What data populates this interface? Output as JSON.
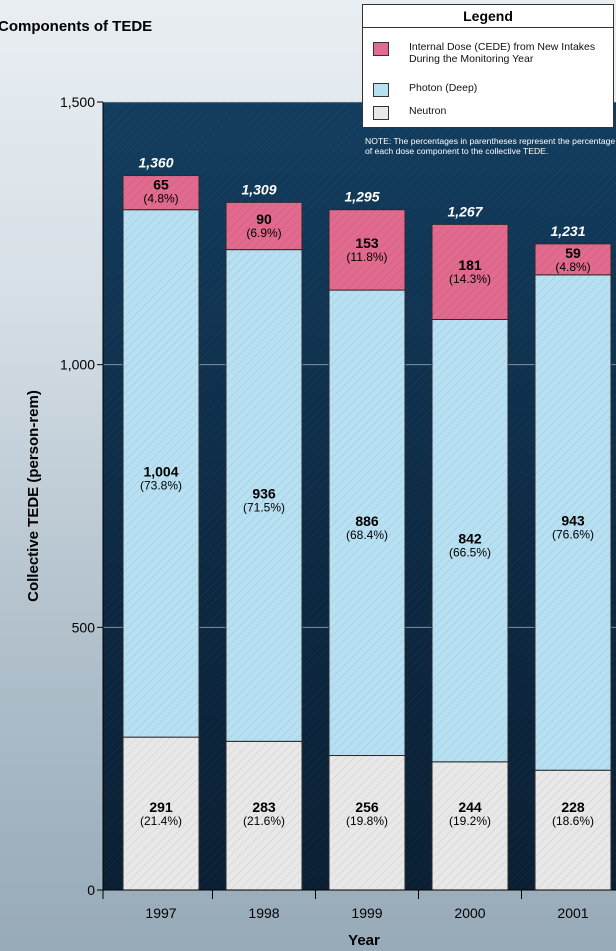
{
  "title": "Components of TEDE",
  "legend": {
    "title": "Legend",
    "items": [
      {
        "label": "Internal Dose (CEDE) from New Intakes During the Monitoring Year",
        "color": "#e16a8e"
      },
      {
        "label": "Photon (Deep)",
        "color": "#b7e0f2"
      },
      {
        "label": "Neutron",
        "color": "#e8e8e8"
      }
    ]
  },
  "note": "NOTE: The percentages in parentheses represent the percentage of each dose component to the collective TEDE.",
  "chart_data": {
    "type": "bar",
    "stacked": true,
    "title": "Components of TEDE",
    "xlabel": "Year",
    "ylabel": "Collective TEDE (person-rem)",
    "ylim": [
      0,
      1500
    ],
    "yticks": [
      "0",
      "500",
      "1,000",
      "1,500"
    ],
    "ytick_values": [
      0,
      500,
      1000,
      1500
    ],
    "categories": [
      "1997",
      "1998",
      "1999",
      "2000",
      "2001"
    ],
    "totals": [
      "1,360",
      "1,309",
      "1,295",
      "1,267",
      "1,231"
    ],
    "series": [
      {
        "name": "Neutron",
        "color": "#e8e8e8",
        "values": [
          291,
          283,
          256,
          244,
          228
        ],
        "labels": [
          "291",
          "283",
          "256",
          "244",
          "228"
        ],
        "percents": [
          "(21.4%)",
          "(21.6%)",
          "(19.8%)",
          "(19.2%)",
          "(18.6%)"
        ]
      },
      {
        "name": "Photon (Deep)",
        "color": "#b7e0f2",
        "values": [
          1004,
          936,
          886,
          842,
          943
        ],
        "labels": [
          "1,004",
          "936",
          "886",
          "842",
          "943"
        ],
        "percents": [
          "(73.8%)",
          "(71.5%)",
          "(68.4%)",
          "(66.5%)",
          "(76.6%)"
        ]
      },
      {
        "name": "Internal Dose (CEDE) from New Intakes During the Monitoring Year",
        "color": "#e16a8e",
        "values": [
          65,
          90,
          153,
          181,
          59
        ],
        "labels": [
          "65",
          "90",
          "153",
          "181",
          "59"
        ],
        "percents": [
          "(4.8%)",
          "(6.9%)",
          "(11.8%)",
          "(14.3%)",
          "(4.8%)"
        ]
      }
    ],
    "grid": true,
    "legend_position": "top-right"
  }
}
